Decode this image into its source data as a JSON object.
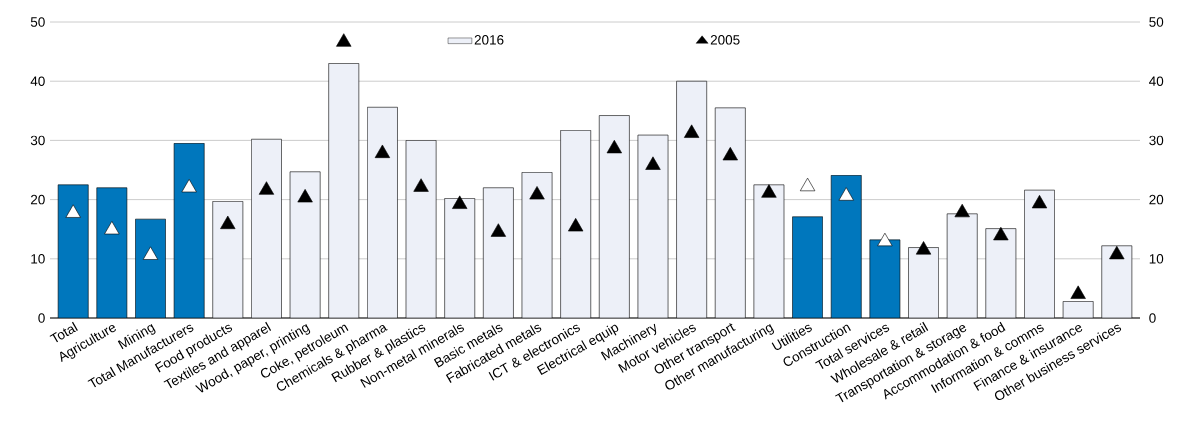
{
  "chart_data": {
    "type": "bar",
    "categories": [
      "Total",
      "Agriculture",
      "Mining",
      "Total Manufacturers",
      "Food products",
      "Textiles and apparel",
      "Wood, paper, printing",
      "Coke, petroleum",
      "Chemicals & pharma",
      "Rubber & plastics",
      "Non-metal minerals",
      "Basic metals",
      "Fabricated metals",
      "ICT & electronics",
      "Electrical equip",
      "Machinery",
      "Motor vehicles",
      "Other transport",
      "Other manufacturing",
      "Utilities",
      "Construction",
      "Total services",
      "Wholesale & retail",
      "Transportation & storage",
      "Accommodation & food",
      "Information & comms",
      "Finance & insurance",
      "Other business services"
    ],
    "series": [
      {
        "name": "2016",
        "color": "#edf0f8",
        "colors": [
          "#0077bd",
          "#0077bd",
          "#0077bd",
          "#0077bd",
          "#edf0f8",
          "#edf0f8",
          "#edf0f8",
          "#edf0f8",
          "#edf0f8",
          "#edf0f8",
          "#edf0f8",
          "#edf0f8",
          "#edf0f8",
          "#edf0f8",
          "#edf0f8",
          "#edf0f8",
          "#edf0f8",
          "#edf0f8",
          "#edf0f8",
          "#0077bd",
          "#0077bd",
          "#0077bd",
          "#edf0f8",
          "#edf0f8",
          "#edf0f8",
          "#edf0f8",
          "#edf0f8",
          "#edf0f8"
        ],
        "values": [
          22.5,
          22,
          16.7,
          29.5,
          19.7,
          30.2,
          24.7,
          43,
          35.6,
          30,
          20.2,
          22,
          24.6,
          31.7,
          34.2,
          30.9,
          40,
          35.5,
          22.5,
          17.1,
          24.1,
          13.2,
          11.9,
          17.6,
          15.1,
          21.6,
          2.8,
          12.2
        ]
      },
      {
        "name": "2005",
        "type": "scatter",
        "marker": "triangle",
        "color": "#000000",
        "colors": [
          "#ffffff",
          "#ffffff",
          "#ffffff",
          "#ffffff",
          "#000000",
          "#000000",
          "#000000",
          "#000000",
          "#000000",
          "#000000",
          "#000000",
          "#000000",
          "#000000",
          "#000000",
          "#000000",
          "#000000",
          "#000000",
          "#000000",
          "#000000",
          "#ffffff",
          "#ffffff",
          "#ffffff",
          "#000000",
          "#000000",
          "#000000",
          "#000000",
          "#000000",
          "#000000"
        ],
        "values": [
          17.7,
          14.9,
          10.6,
          22,
          15.8,
          21.6,
          20.3,
          46.6,
          27.8,
          22.1,
          19.2,
          14.5,
          20.8,
          15.4,
          28.6,
          25.8,
          31.2,
          27.4,
          21.1,
          22.2,
          20.6,
          12.9,
          11.5,
          17.8,
          13.9,
          19.3,
          4,
          10.7
        ]
      }
    ],
    "ylim": [
      0,
      50
    ],
    "yticks": [
      0,
      10,
      20,
      30,
      40,
      50
    ],
    "y2lim": [
      0,
      50
    ],
    "y2ticks": [
      0,
      10,
      20,
      30,
      40,
      50
    ],
    "grid": "y",
    "legend": "top"
  }
}
